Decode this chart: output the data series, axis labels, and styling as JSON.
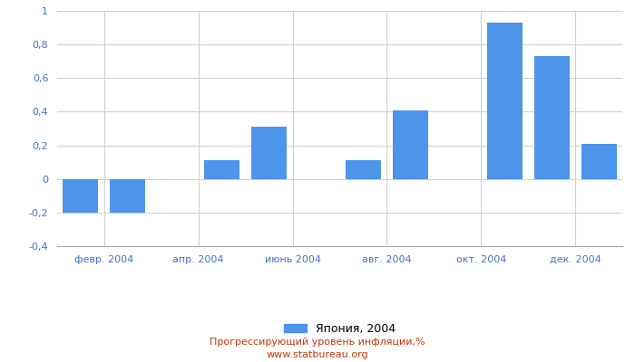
{
  "months": [
    1,
    2,
    3,
    4,
    5,
    6,
    7,
    8,
    9,
    10,
    11,
    12
  ],
  "values": [
    -0.2,
    -0.2,
    0.0,
    0.11,
    0.31,
    0.0,
    0.11,
    0.41,
    0.0,
    0.93,
    0.73,
    0.21
  ],
  "tick_positions": [
    1.5,
    3.5,
    5.5,
    7.5,
    9.5,
    11.5
  ],
  "tick_labels": [
    "февр. 2004",
    "апр. 2004",
    "июнь 2004",
    "авг. 2004",
    "окт. 2004",
    "дек. 2004"
  ],
  "bar_color": "#4d94eb",
  "ylim": [
    -0.4,
    1.0
  ],
  "yticks": [
    -0.4,
    -0.2,
    0.0,
    0.2,
    0.4,
    0.6,
    0.8,
    1.0
  ],
  "legend_label": "Япония, 2004",
  "title_line1": "Прогрессирующий уровень инфляции,%",
  "title_line2": "www.statbureau.org",
  "background_color": "#ffffff",
  "grid_color": "#d0d0d0",
  "tick_color": "#4472c4",
  "caption_color": "#c0390a"
}
